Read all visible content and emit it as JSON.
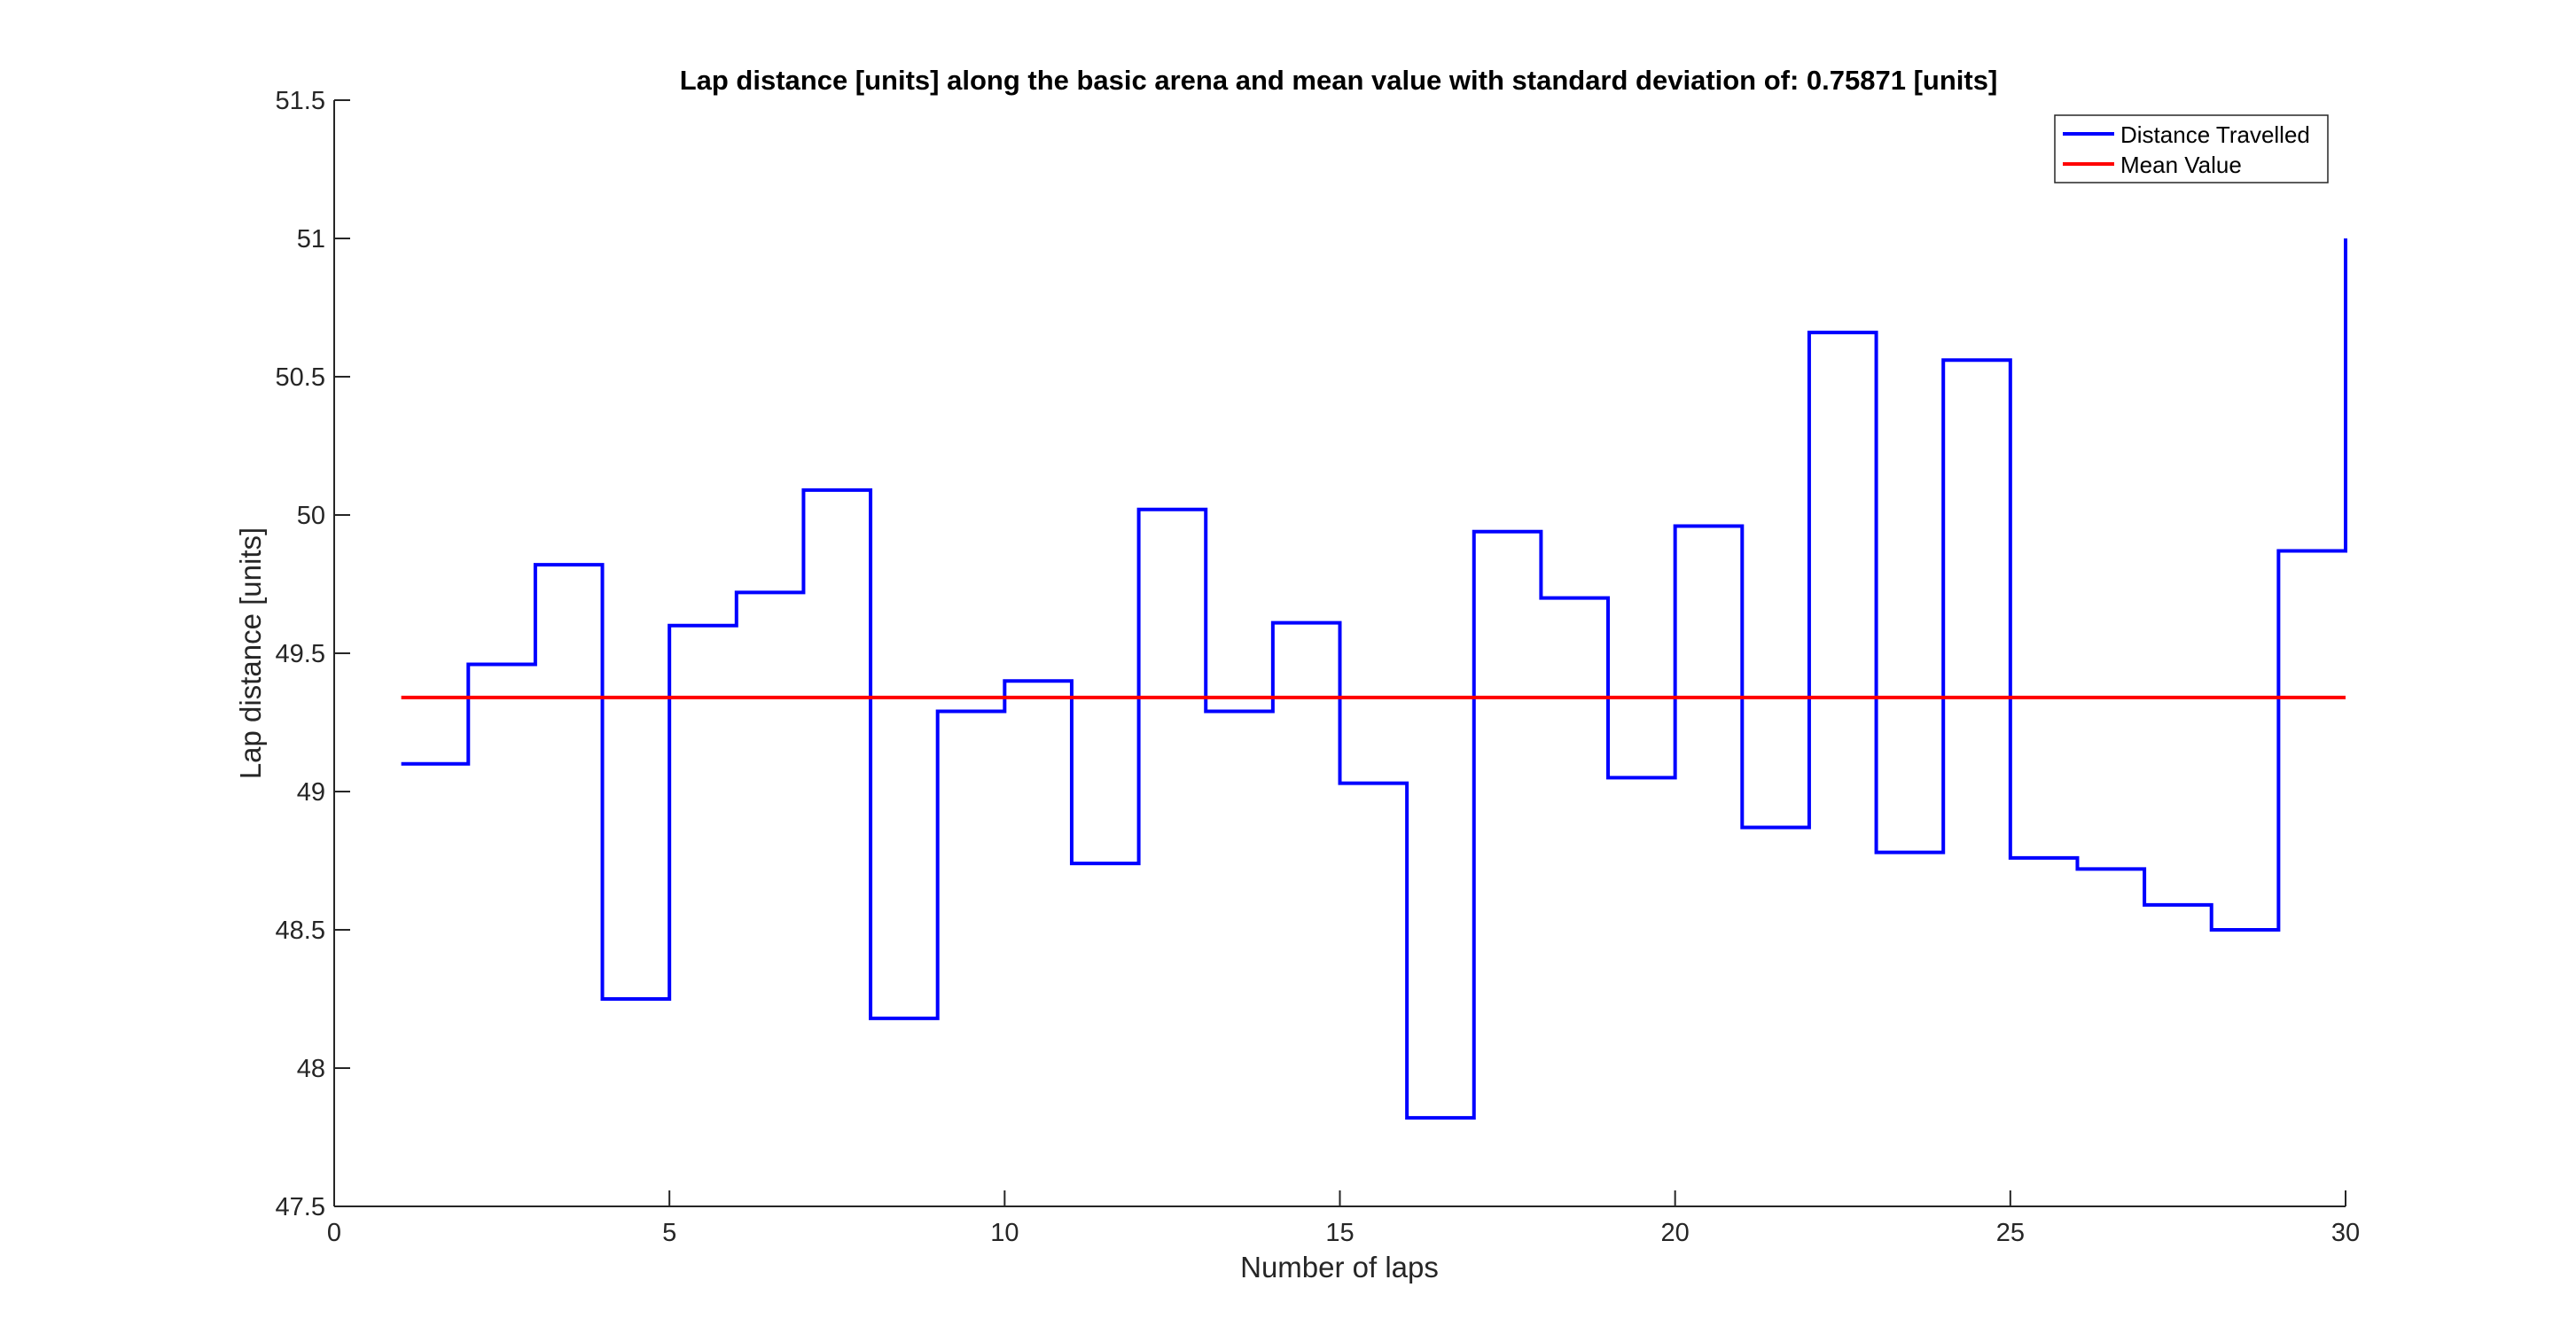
{
  "chart_data": {
    "type": "line",
    "step": true,
    "title": "Lap distance [units] along the basic arena and mean value with standard deviation of: 0.75871 [units]",
    "xlabel": "Number of laps",
    "ylabel": "Lap distance [units]",
    "xlim": [
      0,
      30
    ],
    "ylim": [
      47.5,
      51.5
    ],
    "xticks": [
      0,
      5,
      10,
      15,
      20,
      25,
      30
    ],
    "yticks": [
      47.5,
      48,
      48.5,
      49,
      49.5,
      50,
      50.5,
      51,
      51.5
    ],
    "xtick_labels": [
      "0",
      "5",
      "10",
      "15",
      "20",
      "25",
      "30"
    ],
    "ytick_labels": [
      "47.5",
      "48",
      "48.5",
      "49",
      "49.5",
      "50",
      "50.5",
      "51",
      "51.5"
    ],
    "grid": false,
    "legend_position": "top-right",
    "series": [
      {
        "name": "Distance Travelled",
        "color": "#0000ff",
        "x": [
          1,
          2,
          3,
          4,
          5,
          6,
          7,
          8,
          9,
          10,
          11,
          12,
          13,
          14,
          15,
          16,
          17,
          18,
          19,
          20,
          21,
          22,
          23,
          24,
          25,
          26,
          27,
          28,
          29,
          30
        ],
        "y": [
          49.1,
          49.46,
          49.82,
          48.25,
          49.6,
          49.72,
          50.09,
          48.18,
          49.29,
          49.4,
          48.74,
          50.02,
          49.29,
          49.61,
          49.03,
          47.82,
          49.94,
          49.7,
          49.05,
          49.96,
          48.87,
          50.66,
          48.78,
          50.56,
          48.76,
          48.72,
          48.59,
          48.5,
          49.87,
          51.0
        ]
      },
      {
        "name": "Mean Value",
        "color": "#ff0000",
        "x": [
          1,
          30
        ],
        "y": [
          49.34,
          49.34
        ]
      }
    ]
  }
}
